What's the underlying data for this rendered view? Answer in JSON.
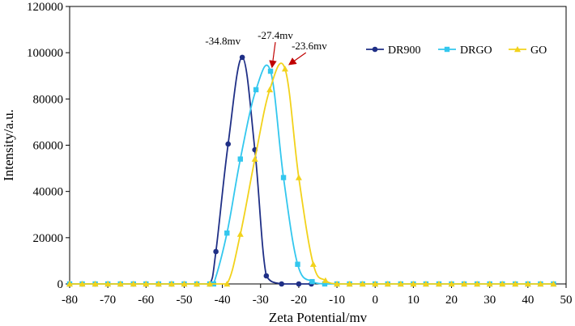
{
  "chart_data": {
    "type": "line",
    "title": "",
    "xlabel": "Zeta Potential/mv",
    "ylabel": "Intensity/a.u.",
    "xlim": [
      -80,
      50
    ],
    "ylim": [
      0,
      120000
    ],
    "x_ticks": [
      "-80",
      "-70",
      "-60",
      "-50",
      "-40",
      "-30",
      "-20",
      "-10",
      "0",
      "10",
      "20",
      "30",
      "40",
      "50"
    ],
    "y_ticks": [
      "0",
      "20000",
      "40000",
      "60000",
      "80000",
      "100000",
      "120000"
    ],
    "grid": false,
    "legend_position": "top-right",
    "series": [
      {
        "name": "DR900",
        "color": "#1f2f86",
        "marker": "circle",
        "points": [
          [
            -80,
            0
          ],
          [
            -76.7,
            0
          ],
          [
            -73.3,
            0
          ],
          [
            -70,
            0
          ],
          [
            -66.7,
            0
          ],
          [
            -63.3,
            0
          ],
          [
            -60,
            0
          ],
          [
            -56.7,
            0
          ],
          [
            -53.3,
            0
          ],
          [
            -50,
            0
          ],
          [
            -46.7,
            0
          ],
          [
            -43.3,
            0
          ],
          [
            -41.7,
            14000
          ],
          [
            -38.5,
            60500
          ],
          [
            -34.8,
            98000
          ],
          [
            -31.5,
            58000
          ],
          [
            -28.5,
            3500
          ],
          [
            -24.5,
            0
          ],
          [
            -20,
            0
          ],
          [
            -16.7,
            0
          ]
        ]
      },
      {
        "name": "DRGO",
        "color": "#33c7ee",
        "marker": "square",
        "points": [
          [
            -80,
            0
          ],
          [
            -76.7,
            0
          ],
          [
            -73.3,
            0
          ],
          [
            -70,
            0
          ],
          [
            -66.7,
            0
          ],
          [
            -63.3,
            0
          ],
          [
            -60,
            0
          ],
          [
            -56.7,
            0
          ],
          [
            -53.3,
            0
          ],
          [
            -50,
            0
          ],
          [
            -46.7,
            0
          ],
          [
            -43.3,
            0
          ],
          [
            -42.3,
            0
          ],
          [
            -38.8,
            22000
          ],
          [
            -35.3,
            54000
          ],
          [
            -31.2,
            84000
          ],
          [
            -27.4,
            92000
          ],
          [
            -24,
            46000
          ],
          [
            -20.3,
            8500
          ],
          [
            -16.5,
            1000
          ],
          [
            -13.2,
            0
          ],
          [
            -10,
            0
          ],
          [
            -6.7,
            0
          ],
          [
            -3.3,
            0
          ],
          [
            0,
            0
          ],
          [
            3.3,
            0
          ],
          [
            6.7,
            0
          ],
          [
            10,
            0
          ],
          [
            13.3,
            0
          ],
          [
            16.7,
            0
          ],
          [
            20,
            0
          ],
          [
            23.3,
            0
          ],
          [
            26.7,
            0
          ],
          [
            30,
            0
          ],
          [
            33.3,
            0
          ],
          [
            36.7,
            0
          ],
          [
            40,
            0
          ],
          [
            43.3,
            0
          ],
          [
            46.7,
            0
          ]
        ]
      },
      {
        "name": "GO",
        "color": "#f2d21b",
        "marker": "triangle",
        "points": [
          [
            -80,
            0
          ],
          [
            -76.7,
            0
          ],
          [
            -73.3,
            0
          ],
          [
            -70,
            0
          ],
          [
            -66.7,
            0
          ],
          [
            -63.3,
            0
          ],
          [
            -60,
            0
          ],
          [
            -56.7,
            0
          ],
          [
            -53.3,
            0
          ],
          [
            -50,
            0
          ],
          [
            -46.7,
            0
          ],
          [
            -43.3,
            0
          ],
          [
            -38.8,
            0
          ],
          [
            -35.3,
            21500
          ],
          [
            -31.5,
            54000
          ],
          [
            -27.6,
            84000
          ],
          [
            -23.6,
            93000
          ],
          [
            -20,
            46000
          ],
          [
            -16.2,
            8500
          ],
          [
            -13,
            1500
          ],
          [
            -10,
            0
          ],
          [
            -6.7,
            0
          ],
          [
            -3.3,
            0
          ],
          [
            0,
            0
          ],
          [
            3.3,
            0
          ],
          [
            6.7,
            0
          ],
          [
            10,
            0
          ],
          [
            13.3,
            0
          ],
          [
            16.7,
            0
          ],
          [
            20,
            0
          ],
          [
            23.3,
            0
          ],
          [
            26.7,
            0
          ],
          [
            30,
            0
          ],
          [
            33.3,
            0
          ],
          [
            36.7,
            0
          ],
          [
            40,
            0
          ],
          [
            43.3,
            0
          ],
          [
            46.7,
            0
          ]
        ]
      }
    ],
    "annotations": [
      {
        "text": "-34.8mv",
        "x": -34.8,
        "y": 98000,
        "arrow": false
      },
      {
        "text": "-27.4mv",
        "x": -27.4,
        "y": 92000,
        "arrow": true
      },
      {
        "text": "-23.6mv",
        "x": -23.6,
        "y": 93000,
        "arrow": true
      }
    ],
    "annotation_arrow_color": "#c00000"
  }
}
